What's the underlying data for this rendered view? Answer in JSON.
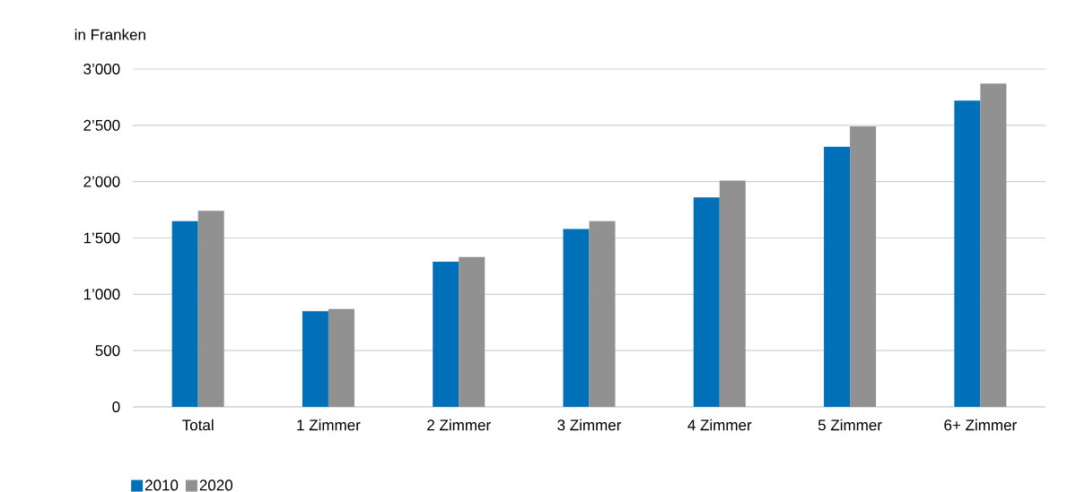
{
  "chart_data": {
    "type": "bar",
    "ylabel": "in Franken",
    "categories": [
      "Total",
      "1 Zimmer",
      "2 Zimmer",
      "3 Zimmer",
      "4 Zimmer",
      "5 Zimmer",
      "6+ Zimmer"
    ],
    "series": [
      {
        "name": "2010",
        "color": "#0070b8",
        "values": [
          1650,
          850,
          1290,
          1580,
          1860,
          2310,
          2720
        ]
      },
      {
        "name": "2020",
        "color": "#919191",
        "values": [
          1740,
          870,
          1330,
          1650,
          2010,
          2490,
          2870
        ]
      }
    ],
    "ylim": [
      0,
      3000
    ],
    "yticks": [
      {
        "value": 0,
        "label": "0"
      },
      {
        "value": 500,
        "label": "500"
      },
      {
        "value": 1000,
        "label": "1’000"
      },
      {
        "value": 1500,
        "label": "1’500"
      },
      {
        "value": 2000,
        "label": "2’000"
      },
      {
        "value": 2500,
        "label": "2’500"
      },
      {
        "value": 3000,
        "label": "3’000"
      }
    ],
    "grid": "y",
    "legend": "bottom left"
  }
}
